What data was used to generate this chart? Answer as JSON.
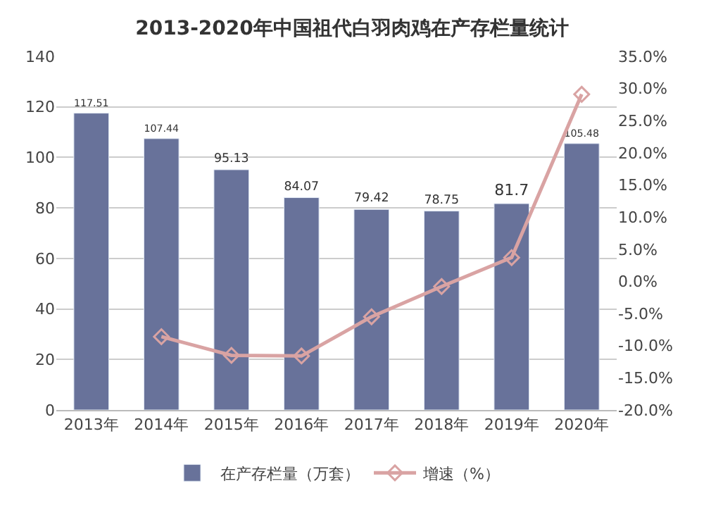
{
  "chart_data": {
    "type": "bar",
    "title": "2013-2020年中国祖代白羽肉鸡在产存栏量统计",
    "categories": [
      "2013年",
      "2014年",
      "2015年",
      "2016年",
      "2017年",
      "2018年",
      "2019年",
      "2020年"
    ],
    "series": [
      {
        "name": "在产存栏量（万套）",
        "color": "#68729a",
        "values": [
          117.51,
          107.44,
          95.13,
          84.07,
          79.42,
          78.75,
          81.7,
          105.48
        ],
        "data_labels": true
      },
      {
        "name": "增速（%）",
        "type": "line",
        "axis": "y2",
        "color": "#d9a3a3",
        "marker": "diamond",
        "values": [
          null,
          -8.6,
          -11.5,
          -11.6,
          -5.5,
          -0.8,
          3.7,
          29.1
        ]
      }
    ],
    "ylim": [
      0,
      140
    ],
    "yticks": [
      0,
      20,
      40,
      60,
      80,
      100,
      120,
      140
    ],
    "y2lim": [
      -20,
      35
    ],
    "y2ticks": [
      {
        "value": -20,
        "label": "-20.0%"
      },
      {
        "value": -15,
        "label": "-15.0%"
      },
      {
        "value": -10,
        "label": "-10.0%"
      },
      {
        "value": -5,
        "label": "-5.0%"
      },
      {
        "value": 0,
        "label": "0.0%"
      },
      {
        "value": 5,
        "label": "5.0%"
      },
      {
        "value": 10,
        "label": "10.0%"
      },
      {
        "value": 15,
        "label": "15.0%"
      },
      {
        "value": 20,
        "label": "20.0%"
      },
      {
        "value": 25,
        "label": "25.0%"
      },
      {
        "value": 30,
        "label": "30.0%"
      },
      {
        "value": 35,
        "label": "35.0%"
      }
    ],
    "grid": "y",
    "legend": "bottom"
  }
}
